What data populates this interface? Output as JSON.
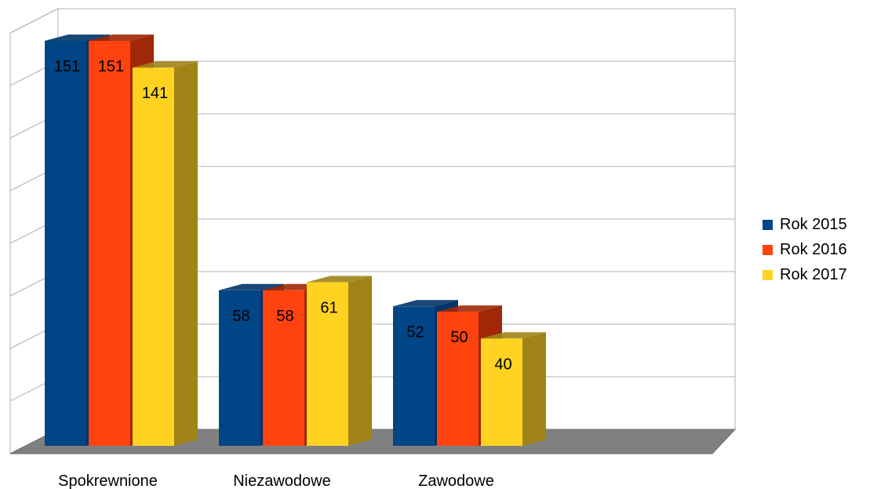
{
  "chart_data": {
    "type": "bar",
    "title": "",
    "xlabel": "",
    "ylabel": "",
    "categories": [
      "Spokrewnione",
      "Niezawodowe",
      "Zawodowe"
    ],
    "series": [
      {
        "name": "Rok 2015",
        "values": [
          151,
          58,
          52
        ],
        "color": "#004586",
        "side_color": "#003468"
      },
      {
        "name": "Rok 2016",
        "values": [
          151,
          58,
          50
        ],
        "color": "#ff420e",
        "side_color": "#a02808"
      },
      {
        "name": "Rok 2017",
        "values": [
          141,
          61,
          40
        ],
        "color": "#ffd320",
        "side_color": "#a08418"
      }
    ],
    "ylim": [
      0,
      160
    ],
    "grid": true,
    "legend_position": "right",
    "data_labels": true,
    "style": "3d-column",
    "floor_color": "#808080"
  }
}
